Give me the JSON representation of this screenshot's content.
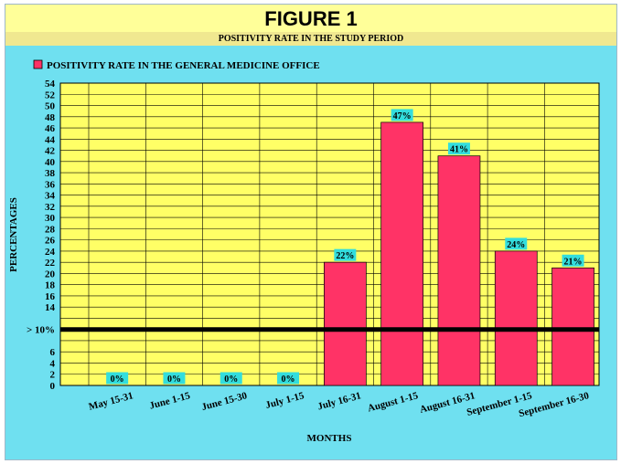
{
  "figure_title": "FIGURE 1",
  "chart_data": {
    "type": "bar",
    "title": "POSITIVITY RATE IN THE STUDY PERIOD",
    "xlabel": "MONTHS",
    "ylabel": "PERCENTAGES",
    "ylim": [
      0,
      54
    ],
    "yticks": [
      "0",
      "2",
      "4",
      "6",
      "> 10%",
      "14",
      "16",
      "18",
      "20",
      "22",
      "24",
      "26",
      "28",
      "30",
      "32",
      "34",
      "36",
      "38",
      "40",
      "42",
      "44",
      "46",
      "48",
      "50",
      "52",
      "54"
    ],
    "categories": [
      "May 15-31",
      "June 1-15",
      "June 15-30",
      "July 1-15",
      "July 16-31",
      "August 1-15",
      "August 16-31",
      "September 1-15",
      "September 16-30"
    ],
    "series": [
      {
        "name": "POSITIVITY RATE IN THE GENERAL MEDICINE OFFICE",
        "values": [
          0,
          0,
          0,
          0,
          22,
          47,
          41,
          24,
          21
        ],
        "labels": [
          "0%",
          "0%",
          "0%",
          "0%",
          "22%",
          "47%",
          "41%",
          "24%",
          "21%"
        ]
      }
    ],
    "threshold": {
      "value": 10,
      "label": "> 10%"
    },
    "grid": true,
    "legend": "top-left",
    "colors": {
      "bar": "#ff3366",
      "plot_bg": "#ffff66",
      "grid": "#000000",
      "threshold": "#000000",
      "label_bg": "#33dddd",
      "frame_bg": "#6fe0f0",
      "header_bg": "#ffff99"
    }
  }
}
